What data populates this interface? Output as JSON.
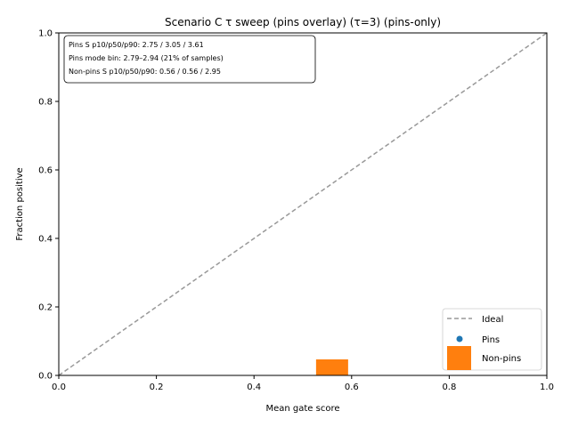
{
  "chart_data": {
    "type": "scatter",
    "title": "Scenario C τ sweep (pins overlay) (τ=3) (pins-only)",
    "xlabel": "Mean gate score",
    "ylabel": "Fraction positive",
    "xlim": [
      0,
      1
    ],
    "ylim": [
      0,
      1
    ],
    "x_ticks": [
      "0.0",
      "0.2",
      "0.4",
      "0.6",
      "0.8",
      "1.0"
    ],
    "y_ticks": [
      "0.0",
      "0.2",
      "0.4",
      "0.6",
      "0.8",
      "1.0"
    ],
    "grid": false,
    "annotation_lines": [
      "Pins S p10/p50/p90: 2.75 / 3.05 / 3.61",
      "Pins mode bin: 2.79–2.94 (21% of samples)",
      "Non-pins S p10/p50/p90: 0.56 / 0.56 / 2.95"
    ],
    "legend_position": "lower-right",
    "legend": [
      {
        "label": "Ideal",
        "marker": "dashed-line",
        "color": "#999999"
      },
      {
        "label": "Pins",
        "marker": "dot",
        "color": "#1f77b4"
      },
      {
        "label": "Non-pins",
        "marker": "square",
        "color": "#ff7f0e"
      }
    ],
    "series": [
      {
        "name": "Ideal",
        "kind": "line",
        "color": "#999999",
        "x": [
          0,
          1
        ],
        "y": [
          0,
          1
        ]
      },
      {
        "name": "Pins",
        "kind": "scatter",
        "color": "#1f77b4",
        "points": []
      },
      {
        "name": "Non-pins",
        "kind": "square",
        "color": "#ff7f0e",
        "points": [
          {
            "x": 0.56,
            "y": 0.0
          }
        ]
      }
    ]
  }
}
